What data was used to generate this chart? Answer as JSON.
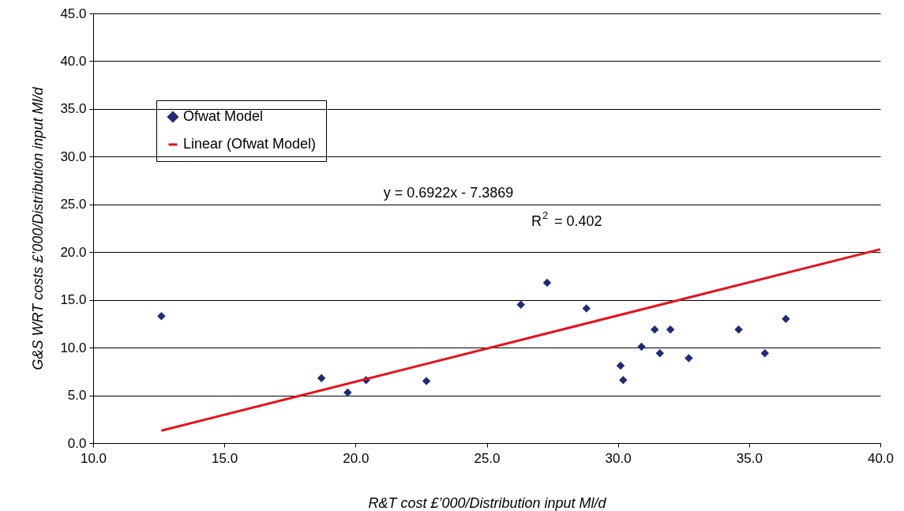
{
  "chart_data": {
    "type": "scatter",
    "xlabel": "R&T cost £’000/Distribution input Ml/d",
    "ylabel": "G&S WRT costs £’000/Distribution input Ml/d",
    "xlim": [
      10,
      40
    ],
    "xticks": [
      {
        "value": 10,
        "label": "10.0"
      },
      {
        "value": 15,
        "label": "15.0"
      },
      {
        "value": 20,
        "label": "20.0"
      },
      {
        "value": 25,
        "label": "25.0"
      },
      {
        "value": 30,
        "label": "30.0"
      },
      {
        "value": 35,
        "label": "35.0"
      },
      {
        "value": 40,
        "label": "40.0"
      }
    ],
    "ylim": [
      0,
      45
    ],
    "yticks": [
      {
        "value": 0,
        "label": "0.0"
      },
      {
        "value": 5,
        "label": "5.0"
      },
      {
        "value": 10,
        "label": "10.0"
      },
      {
        "value": 15,
        "label": "15.0"
      },
      {
        "value": 20,
        "label": "20.0"
      },
      {
        "value": 25,
        "label": "25.0"
      },
      {
        "value": 30,
        "label": "30.0"
      },
      {
        "value": 35,
        "label": "35.0"
      },
      {
        "value": 40,
        "label": "40.0"
      },
      {
        "value": 45,
        "label": "45.0"
      }
    ],
    "grid": "y",
    "legend": "top left",
    "annotations": [
      "y = 0.6922x - 7.3869",
      "R$^{2}$ = 0.402"
    ],
    "series": [
      {
        "name": "Ofwat Model",
        "marker": "diamond",
        "color": "#1f2a7a",
        "x": [
          12.6,
          18.7,
          19.7,
          20.4,
          22.7,
          26.3,
          27.3,
          28.8,
          30.1,
          30.2,
          30.9,
          31.4,
          31.6,
          32.0,
          32.7,
          34.6,
          35.6,
          36.4
        ],
        "values": [
          13.3,
          6.8,
          5.3,
          6.6,
          6.5,
          14.5,
          16.8,
          14.1,
          8.1,
          6.6,
          10.1,
          11.9,
          9.4,
          11.9,
          8.9,
          11.9,
          9.4,
          13.0
        ]
      },
      {
        "name": "Linear (Ofwat Model)",
        "type": "line",
        "marker": "none",
        "color": "#e8101c",
        "line_style": "solid",
        "x": [
          12.6,
          40
        ],
        "values": [
          1.3,
          20.3
        ]
      }
    ]
  }
}
